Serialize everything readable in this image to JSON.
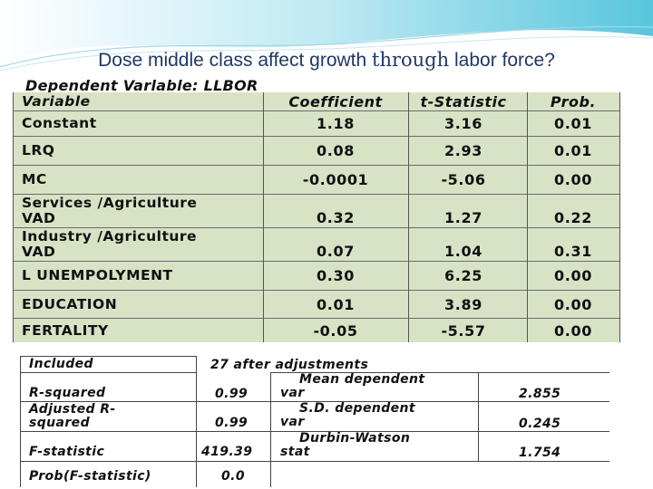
{
  "title": {
    "part1": "Dose middle class affect growth ",
    "part2": "through",
    "part3": " labor force?"
  },
  "dependent_variable": "Dependent Varlable: LLBOR",
  "table": {
    "headers": [
      "Variable",
      "Coefficient",
      "t-Statistic",
      "Prob."
    ],
    "rows": [
      {
        "variable": "Constant",
        "coefficient": "1.18",
        "t_statistic": "3.16",
        "prob": "0.01"
      },
      {
        "variable": "LRQ",
        "coefficient": "0.08",
        "t_statistic": "2.93",
        "prob": "0.01"
      },
      {
        "variable": "MC",
        "coefficient": "-0.0001",
        "t_statistic": "-5.06",
        "prob": "0.00"
      },
      {
        "variable_line1": "Services /Agriculture",
        "variable_line2": "VAD",
        "coefficient": "0.32",
        "t_statistic": "1.27",
        "prob": "0.22"
      },
      {
        "variable_line1": "Industry /Agriculture",
        "variable_line2": "VAD",
        "coefficient": "0.07",
        "t_statistic": "1.04",
        "prob": "0.31"
      },
      {
        "variable": "L UNEMPOLYMENT",
        "coefficient": "0.30",
        "t_statistic": "6.25",
        "prob": "0.00"
      },
      {
        "variable": "EDUCATION",
        "coefficient": "0.01",
        "t_statistic": "3.89",
        "prob": "0.00"
      },
      {
        "variable": "FERTALITY",
        "coefficient": "-0.05",
        "t_statistic": "-5.57",
        "prob": "0.00"
      }
    ]
  },
  "stats": {
    "included_label": "Included",
    "included_value": "27 after adjustments",
    "r_squared_label": "R-squared",
    "r_squared_value": "0.99",
    "mean_dep_line1": "Mean dependent",
    "mean_dep_line2": "var",
    "mean_dep_value": "2.855",
    "adj_r_line1": "Adjusted R-",
    "adj_r_line2": "squared",
    "adj_r_value": "0.99",
    "sd_dep_line1": "S.D. dependent",
    "sd_dep_line2": "var",
    "sd_dep_value": "0.245",
    "f_stat_label": "F-statistic",
    "f_stat_value": "419.39",
    "dw_line1": "Durbin-Watson",
    "dw_line2": "stat",
    "dw_value": "1.754",
    "prob_f_label": "Prob(F-statistic)",
    "prob_f_value": "0.0"
  },
  "colors": {
    "title": "#1f3864",
    "table_bg": "#d8e3c6",
    "wave": "#7fd3e6"
  }
}
